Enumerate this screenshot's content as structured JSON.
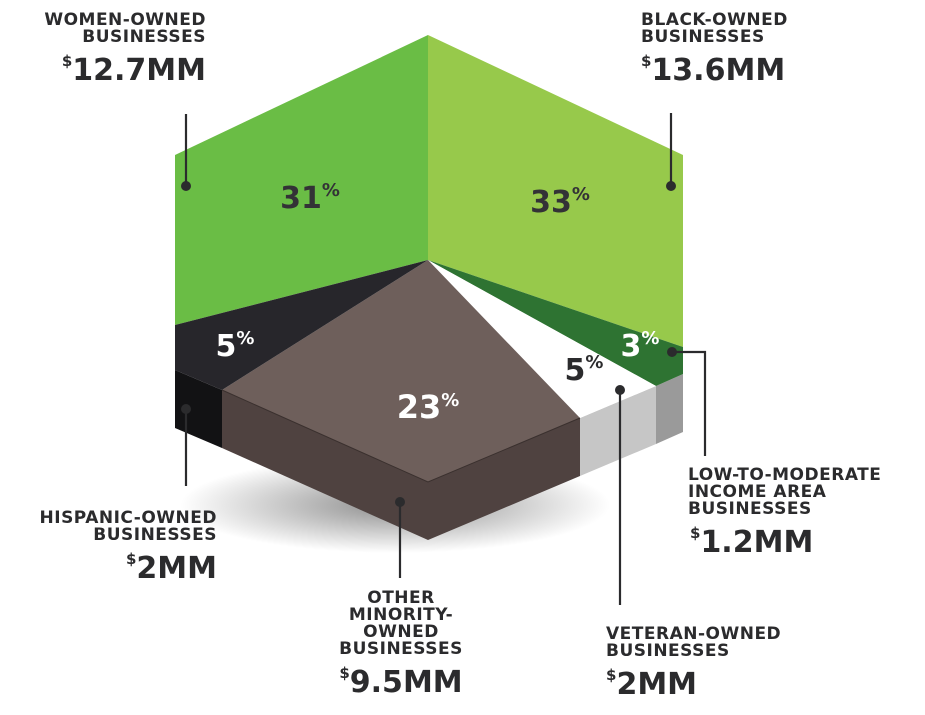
{
  "chart_data": {
    "type": "pie",
    "title": "",
    "currency_symbol": "$",
    "percent_symbol": "%",
    "slices": [
      {
        "key": "black",
        "label": "BLACK-OWNED BUSINESSES",
        "percent": 33,
        "amount": "13.6",
        "unit": "MM",
        "color": "#97c94b",
        "side_color": "#97c94b"
      },
      {
        "key": "lmi",
        "label": "LOW-TO-MODERATE INCOME AREA BUSINESSES",
        "percent": 3,
        "amount": "1.2",
        "unit": "MM",
        "color": "#2e7332",
        "side_color": "#9a9a9a"
      },
      {
        "key": "veteran",
        "label": "VETERAN-OWNED BUSINESSES",
        "percent": 5,
        "amount": "2",
        "unit": "MM",
        "color": "#ffffff",
        "side_color": "#c6c6c6"
      },
      {
        "key": "other",
        "label": "OTHER MINORITY-OWNED BUSINESSES",
        "percent": 23,
        "amount": "9.5",
        "unit": "MM",
        "color": "#6e5f5b",
        "side_color": "#4f4240"
      },
      {
        "key": "hispanic",
        "label": "HISPANIC-OWNED BUSINESSES",
        "percent": 5,
        "amount": "2",
        "unit": "MM",
        "color": "#27262b",
        "side_color": "#121214"
      },
      {
        "key": "women",
        "label": "WOMEN-OWNED BUSINESSES",
        "percent": 31,
        "amount": "12.7",
        "unit": "MM",
        "color": "#6abd45",
        "side_color": "#6abd45"
      }
    ]
  }
}
